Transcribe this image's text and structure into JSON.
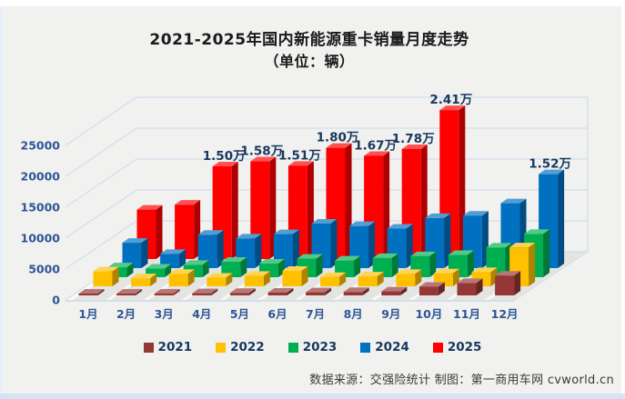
{
  "title": {
    "line1": "2021-2025年国内新能源重卡销量月度走势",
    "line2": "（单位：辆）"
  },
  "legend": {
    "items": [
      {
        "label": "2021",
        "color": "#953735"
      },
      {
        "label": "2022",
        "color": "#ffc000"
      },
      {
        "label": "2023",
        "color": "#00b050"
      },
      {
        "label": "2024",
        "color": "#0070c0"
      },
      {
        "label": "2025",
        "color": "#fe0000"
      }
    ]
  },
  "footer": {
    "text": "数据来源：交强险统计 制图：第一商用车网 cvworld.cn"
  },
  "chart_data": {
    "type": "bar",
    "projection": "3d",
    "title": "2021-2025年国内新能源重卡销量月度走势",
    "subtitle": "（单位：辆）",
    "unit": "辆",
    "categories": [
      "1月",
      "2月",
      "3月",
      "4月",
      "5月",
      "6月",
      "7月",
      "8月",
      "9月",
      "10月",
      "11月",
      "12月"
    ],
    "y_ticks": [
      0,
      5000,
      10000,
      15000,
      20000,
      25000
    ],
    "ylim": [
      0,
      27000
    ],
    "grid": true,
    "legend_position": "bottom",
    "series": [
      {
        "name": "2021",
        "color": "#953735",
        "values": [
          100,
          200,
          300,
          350,
          400,
          450,
          500,
          550,
          650,
          1400,
          2000,
          3200
        ]
      },
      {
        "name": "2022",
        "color": "#ffc000",
        "values": [
          2400,
          1300,
          2000,
          1400,
          1700,
          2500,
          1500,
          1600,
          2000,
          2100,
          2300,
          6300
        ]
      },
      {
        "name": "2023",
        "color": "#00b050",
        "values": [
          1600,
          1400,
          2000,
          2500,
          2200,
          3000,
          2700,
          3100,
          3400,
          3600,
          4800,
          7000
        ]
      },
      {
        "name": "2024",
        "color": "#0070c0",
        "values": [
          4100,
          2300,
          5400,
          4800,
          5500,
          7200,
          6800,
          6400,
          8100,
          8500,
          10500,
          15200
        ]
      },
      {
        "name": "2025",
        "color": "#fe0000",
        "values": [
          8000,
          8800,
          15000,
          15800,
          15100,
          18000,
          16700,
          17800,
          24100,
          null,
          null,
          null
        ]
      }
    ],
    "data_labels": [
      {
        "series": "2025",
        "month": "3月",
        "text": "1.50万"
      },
      {
        "series": "2025",
        "month": "4月",
        "text": "1.58万"
      },
      {
        "series": "2025",
        "month": "5月",
        "text": "1.51万"
      },
      {
        "series": "2025",
        "month": "6月",
        "text": "1.80万"
      },
      {
        "series": "2025",
        "month": "7月",
        "text": "1.67万"
      },
      {
        "series": "2025",
        "month": "8月",
        "text": "1.78万"
      },
      {
        "series": "2025",
        "month": "9月",
        "text": "2.41万"
      },
      {
        "series": "2024",
        "month": "12月",
        "text": "1.52万"
      }
    ],
    "label_color": "#17375e",
    "axis_color": "#2e5596",
    "gridline_color": "#c9d9ee"
  }
}
